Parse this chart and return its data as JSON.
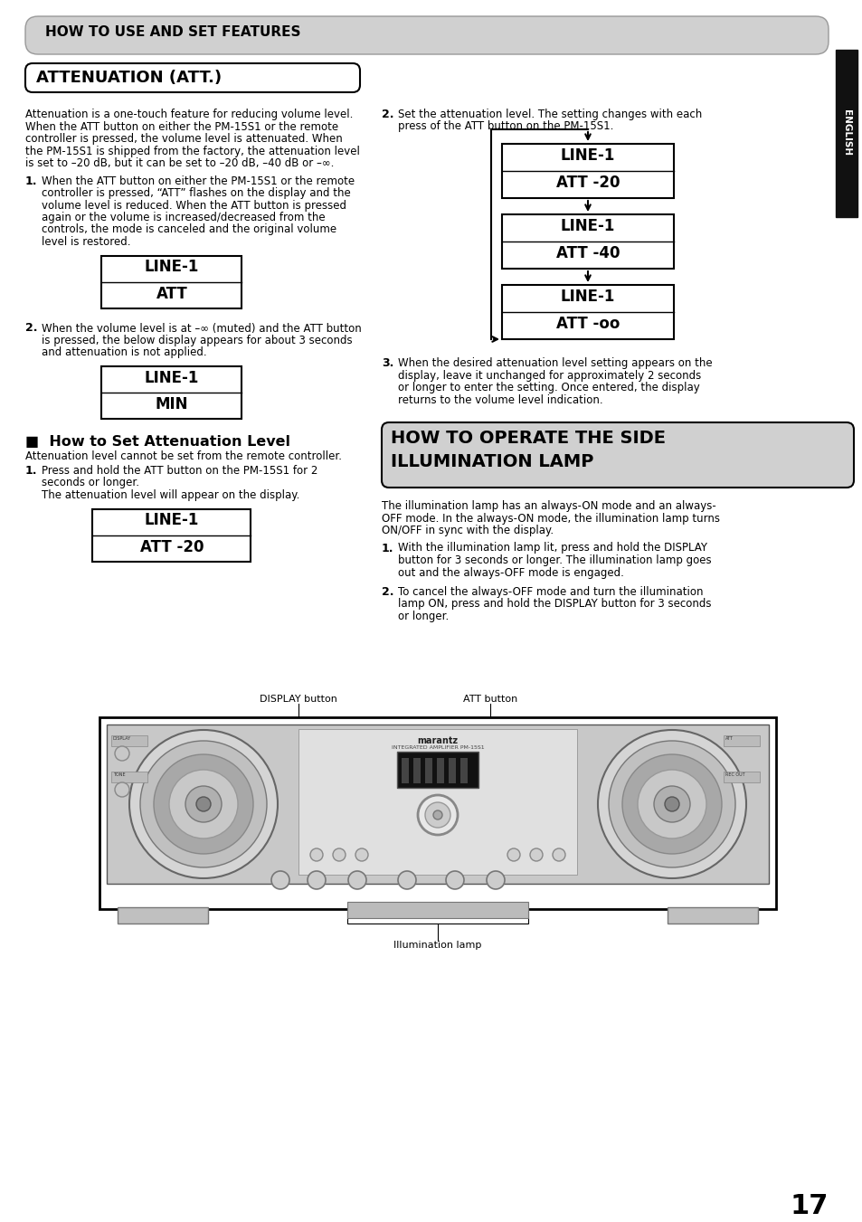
{
  "page_bg": "#ffffff",
  "header_bg": "#d0d0d0",
  "header_text": "HOW TO USE AND SET FEATURES",
  "section1_title": "ATTENUATION (ATT.)",
  "section2_title_line1": "HOW TO OPERATE THE SIDE",
  "section2_title_line2": "ILLUMINATION LAMP",
  "english_label": "ENGLISH",
  "page_number": "17",
  "intro_lines": [
    "Attenuation is a one-touch feature for reducing volume level.",
    "When the ATT button on either the PM-15S1 or the remote",
    "controller is pressed, the volume level is attenuated. When",
    "the PM-15S1 is shipped from the factory, the attenuation level",
    "is set to –20 dB, but it can be set to –20 dB, –40 dB or –∞."
  ],
  "step1L_lines": [
    "When the ATT button on either the PM-15S1 or the remote",
    "controller is pressed, “ATT” flashes on the display and the",
    "volume level is reduced. When the ATT button is pressed",
    "again or the volume is increased/decreased from the",
    "controls, the mode is canceled and the original volume",
    "level is restored."
  ],
  "disp1_l1": "LINE-1",
  "disp1_l2": "ATT",
  "step2L_lines": [
    "When the volume level is at –∞ (muted) and the ATT button",
    "is pressed, the below display appears for about 3 seconds",
    "and attenuation is not applied."
  ],
  "disp2_l1": "LINE-1",
  "disp2_l2": "MIN",
  "set_title": "■  How to Set Attenuation Level",
  "set_intro": "Attenuation level cannot be set from the remote controller.",
  "step1S_lines": [
    "Press and hold the ATT button on the PM-15S1 for 2",
    "seconds or longer.",
    "The attenuation level will appear on the display."
  ],
  "disp3_l1": "LINE-1",
  "disp3_l2": "ATT -20",
  "step2R_lines": [
    "Set the attenuation level. The setting changes with each",
    "press of the ATT button on the PM-15S1."
  ],
  "disp_cycle": [
    [
      "LINE-1",
      "ATT -20"
    ],
    [
      "LINE-1",
      "ATT -40"
    ],
    [
      "LINE-1",
      "ATT -oo"
    ]
  ],
  "step3R_lines": [
    "When the desired attenuation level setting appears on the",
    "display, leave it unchanged for approximately 2 seconds",
    "or longer to enter the setting. Once entered, the display",
    "returns to the volume level indication."
  ],
  "illum_intro_lines": [
    "The illumination lamp has an always-ON mode and an always-",
    "OFF mode. In the always-ON mode, the illumination lamp turns",
    "ON/OFF in sync with the display."
  ],
  "illum1_lines": [
    "With the illumination lamp lit, press and hold the DISPLAY",
    "button for 3 seconds or longer. The illumination lamp goes",
    "out and the always-OFF mode is engaged."
  ],
  "illum2_lines": [
    "To cancel the always-OFF mode and turn the illumination",
    "lamp ON, press and hold the DISPLAY button for 3 seconds",
    "or longer."
  ],
  "label_display": "DISPLAY button",
  "label_att": "ATT button",
  "label_illum": "Illumination lamp"
}
